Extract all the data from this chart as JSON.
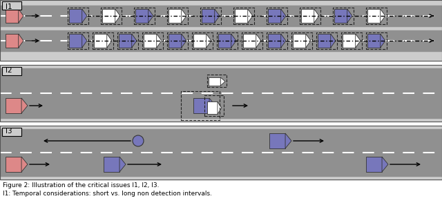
{
  "fig_width": 6.4,
  "fig_height": 2.94,
  "dpi": 100,
  "road_color": "#909090",
  "panel_bg": "#cccccc",
  "car_blue": "#7777bb",
  "car_pink": "#dd8888",
  "caption_line1": "Figure 2: Illustration of the critical issues I1, I2, I3.",
  "caption_line2": "I1: Temporal considerations: short vs. long non detection intervals."
}
